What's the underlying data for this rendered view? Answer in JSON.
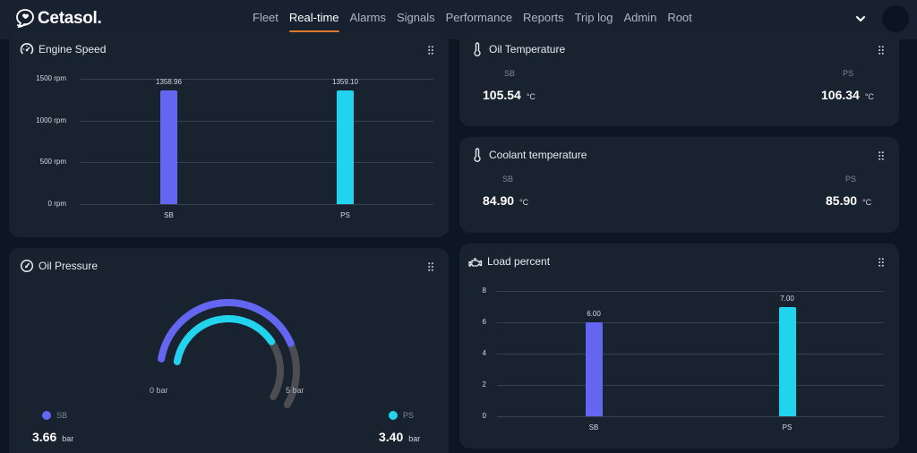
{
  "app": {
    "brand": "Cetasol."
  },
  "nav": {
    "items": [
      {
        "label": "Fleet",
        "active": false
      },
      {
        "label": "Real-time",
        "active": true
      },
      {
        "label": "Alarms",
        "active": false
      },
      {
        "label": "Signals",
        "active": false
      },
      {
        "label": "Performance",
        "active": false
      },
      {
        "label": "Reports",
        "active": false
      },
      {
        "label": "Trip log",
        "active": false
      },
      {
        "label": "Admin",
        "active": false
      },
      {
        "label": "Root",
        "active": false
      }
    ],
    "accent": "#e0782a"
  },
  "colors": {
    "sb": "#6366f1",
    "ps": "#22d3ee",
    "gauge_track": "#4a4d52"
  },
  "engine_speed": {
    "title": "Engine Speed",
    "icon": "speedometer-icon"
  },
  "oil_temperature": {
    "title": "Oil Temperature",
    "icon": "thermometer-icon",
    "sb": {
      "label": "SB",
      "value": "105.54",
      "unit": "°C"
    },
    "ps": {
      "label": "PS",
      "value": "106.34",
      "unit": "°C"
    }
  },
  "coolant_temperature": {
    "title": "Coolant temperature",
    "icon": "thermometer-icon",
    "sb": {
      "label": "SB",
      "value": "84.90",
      "unit": "°C"
    },
    "ps": {
      "label": "PS",
      "value": "85.90",
      "unit": "°C"
    }
  },
  "oil_pressure": {
    "title": "Oil Pressure",
    "icon": "gauge-icon",
    "min_label": "0 bar",
    "max_label": "5 bar",
    "min": 0,
    "max": 5,
    "sb": {
      "label": "SB",
      "value": "3.66",
      "unit": "bar",
      "numeric": 3.66
    },
    "ps": {
      "label": "PS",
      "value": "3.40",
      "unit": "bar",
      "numeric": 3.4
    }
  },
  "load_percent": {
    "title": "Load percent",
    "icon": "engine-icon"
  },
  "chart_data": [
    {
      "id": "engine_speed",
      "type": "bar",
      "title": "Engine Speed",
      "categories": [
        "SB",
        "PS"
      ],
      "values": [
        1358.96,
        1359.1
      ],
      "value_labels": [
        "1358.96",
        "1359.10"
      ],
      "ylim": [
        0,
        1500
      ],
      "yticks": [
        0,
        500,
        1000,
        1500
      ],
      "ytick_labels": [
        "0 rpm",
        "500 rpm",
        "1000 rpm",
        "1500 rpm"
      ],
      "xlabel": "",
      "ylabel": "",
      "grid": true
    },
    {
      "id": "load_percent",
      "type": "bar",
      "title": "Load percent",
      "categories": [
        "SB",
        "PS"
      ],
      "values": [
        6.0,
        7.0
      ],
      "value_labels": [
        "6.00",
        "7.00"
      ],
      "ylim": [
        0,
        8
      ],
      "yticks": [
        0,
        2,
        4,
        6,
        8
      ],
      "ytick_labels": [
        "0",
        "2",
        "4",
        "6",
        "8"
      ],
      "xlabel": "",
      "ylabel": "",
      "grid": true
    },
    {
      "id": "oil_pressure",
      "type": "gauge",
      "title": "Oil Pressure",
      "series": [
        {
          "name": "SB",
          "value": 3.66
        },
        {
          "name": "PS",
          "value": 3.4
        }
      ],
      "range": [
        0,
        5
      ],
      "unit": "bar"
    }
  ]
}
